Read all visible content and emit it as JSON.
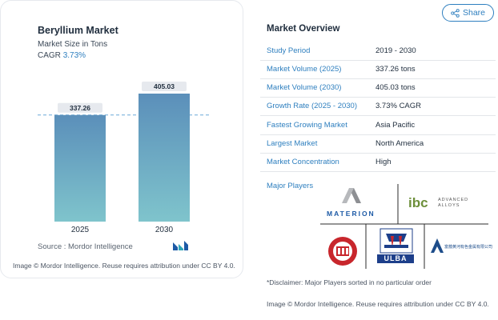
{
  "chart": {
    "title": "Beryllium Market",
    "subtitle": "Market Size in Tons",
    "cagr_label": "CAGR",
    "cagr_value": "3.73%",
    "source": "Source :  Mordor Intelligence",
    "image_credit": "Image © Mordor Intelligence. Reuse requires attribution under CC BY 4.0."
  },
  "chart_data": {
    "type": "bar",
    "categories": [
      "2025",
      "2030"
    ],
    "values": [
      337.26,
      405.03
    ],
    "value_labels": [
      "337.26",
      "405.03"
    ],
    "title": "Beryllium Market",
    "ylabel": "Market Size in Tons",
    "ylim": [
      0,
      405.03
    ],
    "grid": false,
    "reference_line": "dashed line at 2025 value",
    "colors": {
      "bar_top": "#5b8fba",
      "bar_bottom": "#7fc4cc",
      "label_bg": "#e6e9ee",
      "dash": "#6aa9d8"
    }
  },
  "share": {
    "label": "Share",
    "icon": "share-icon"
  },
  "overview": {
    "title": "Market Overview",
    "rows": [
      {
        "label": "Study Period",
        "value": "2019 - 2030"
      },
      {
        "label": "Market Volume (2025)",
        "value": "337.26 tons"
      },
      {
        "label": "Market Volume (2030)",
        "value": "405.03 tons"
      },
      {
        "label": "Growth Rate (2025 - 2030)",
        "value": "3.73% CAGR"
      },
      {
        "label": "Fastest Growing Market",
        "value": "Asia Pacific"
      },
      {
        "label": "Largest Market",
        "value": "North America"
      },
      {
        "label": "Market Concentration",
        "value": "High"
      }
    ],
    "players_label": "Major Players",
    "players": {
      "materion": "MATERION",
      "ibc": "ibc",
      "ibc_sub": "ADVANCED ALLOYS",
      "ulba": "ULBA",
      "chinese": "富蕴黄河有色金属有限公司"
    },
    "disclaimer": "*Disclaimer: Major Players sorted in no particular order",
    "image_credit": "Image © Mordor Intelligence. Reuse requires attribution under CC BY 4.0."
  }
}
